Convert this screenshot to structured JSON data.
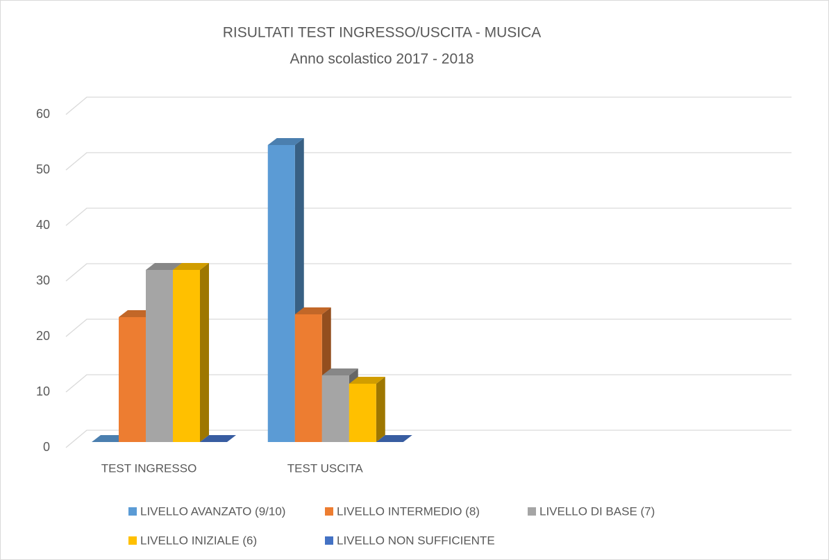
{
  "chart_data": {
    "type": "bar3d",
    "title": "RISULTATI TEST INGRESSO/USCITA - MUSICA",
    "subtitle": "Anno scolastico 2017 - 2018",
    "categories": [
      "TEST INGRESSO",
      "TEST USCITA",
      null,
      null
    ],
    "series": [
      {
        "name": "LIVELLO AVANZATO (9/10)",
        "color": "#5b9bd5",
        "values": [
          0,
          53.5,
          null,
          null
        ]
      },
      {
        "name": "LIVELLO INTERMEDIO (8)",
        "color": "#ed7d31",
        "values": [
          22.5,
          23,
          null,
          null
        ]
      },
      {
        "name": "LIVELLO DI BASE (7)",
        "color": "#a5a5a5",
        "values": [
          31,
          12,
          null,
          null
        ]
      },
      {
        "name": "LIVELLO INIZIALE (6)",
        "color": "#ffc000",
        "values": [
          31,
          10.5,
          null,
          null
        ]
      },
      {
        "name": "LIVELLO NON SUFFICIENTE",
        "color": "#4472c4",
        "values": [
          0,
          0,
          null,
          null
        ]
      }
    ],
    "ylim": [
      0,
      60
    ],
    "yticks": [
      0,
      10,
      20,
      30,
      40,
      50,
      60
    ],
    "grid": true,
    "legend": "bottom"
  }
}
